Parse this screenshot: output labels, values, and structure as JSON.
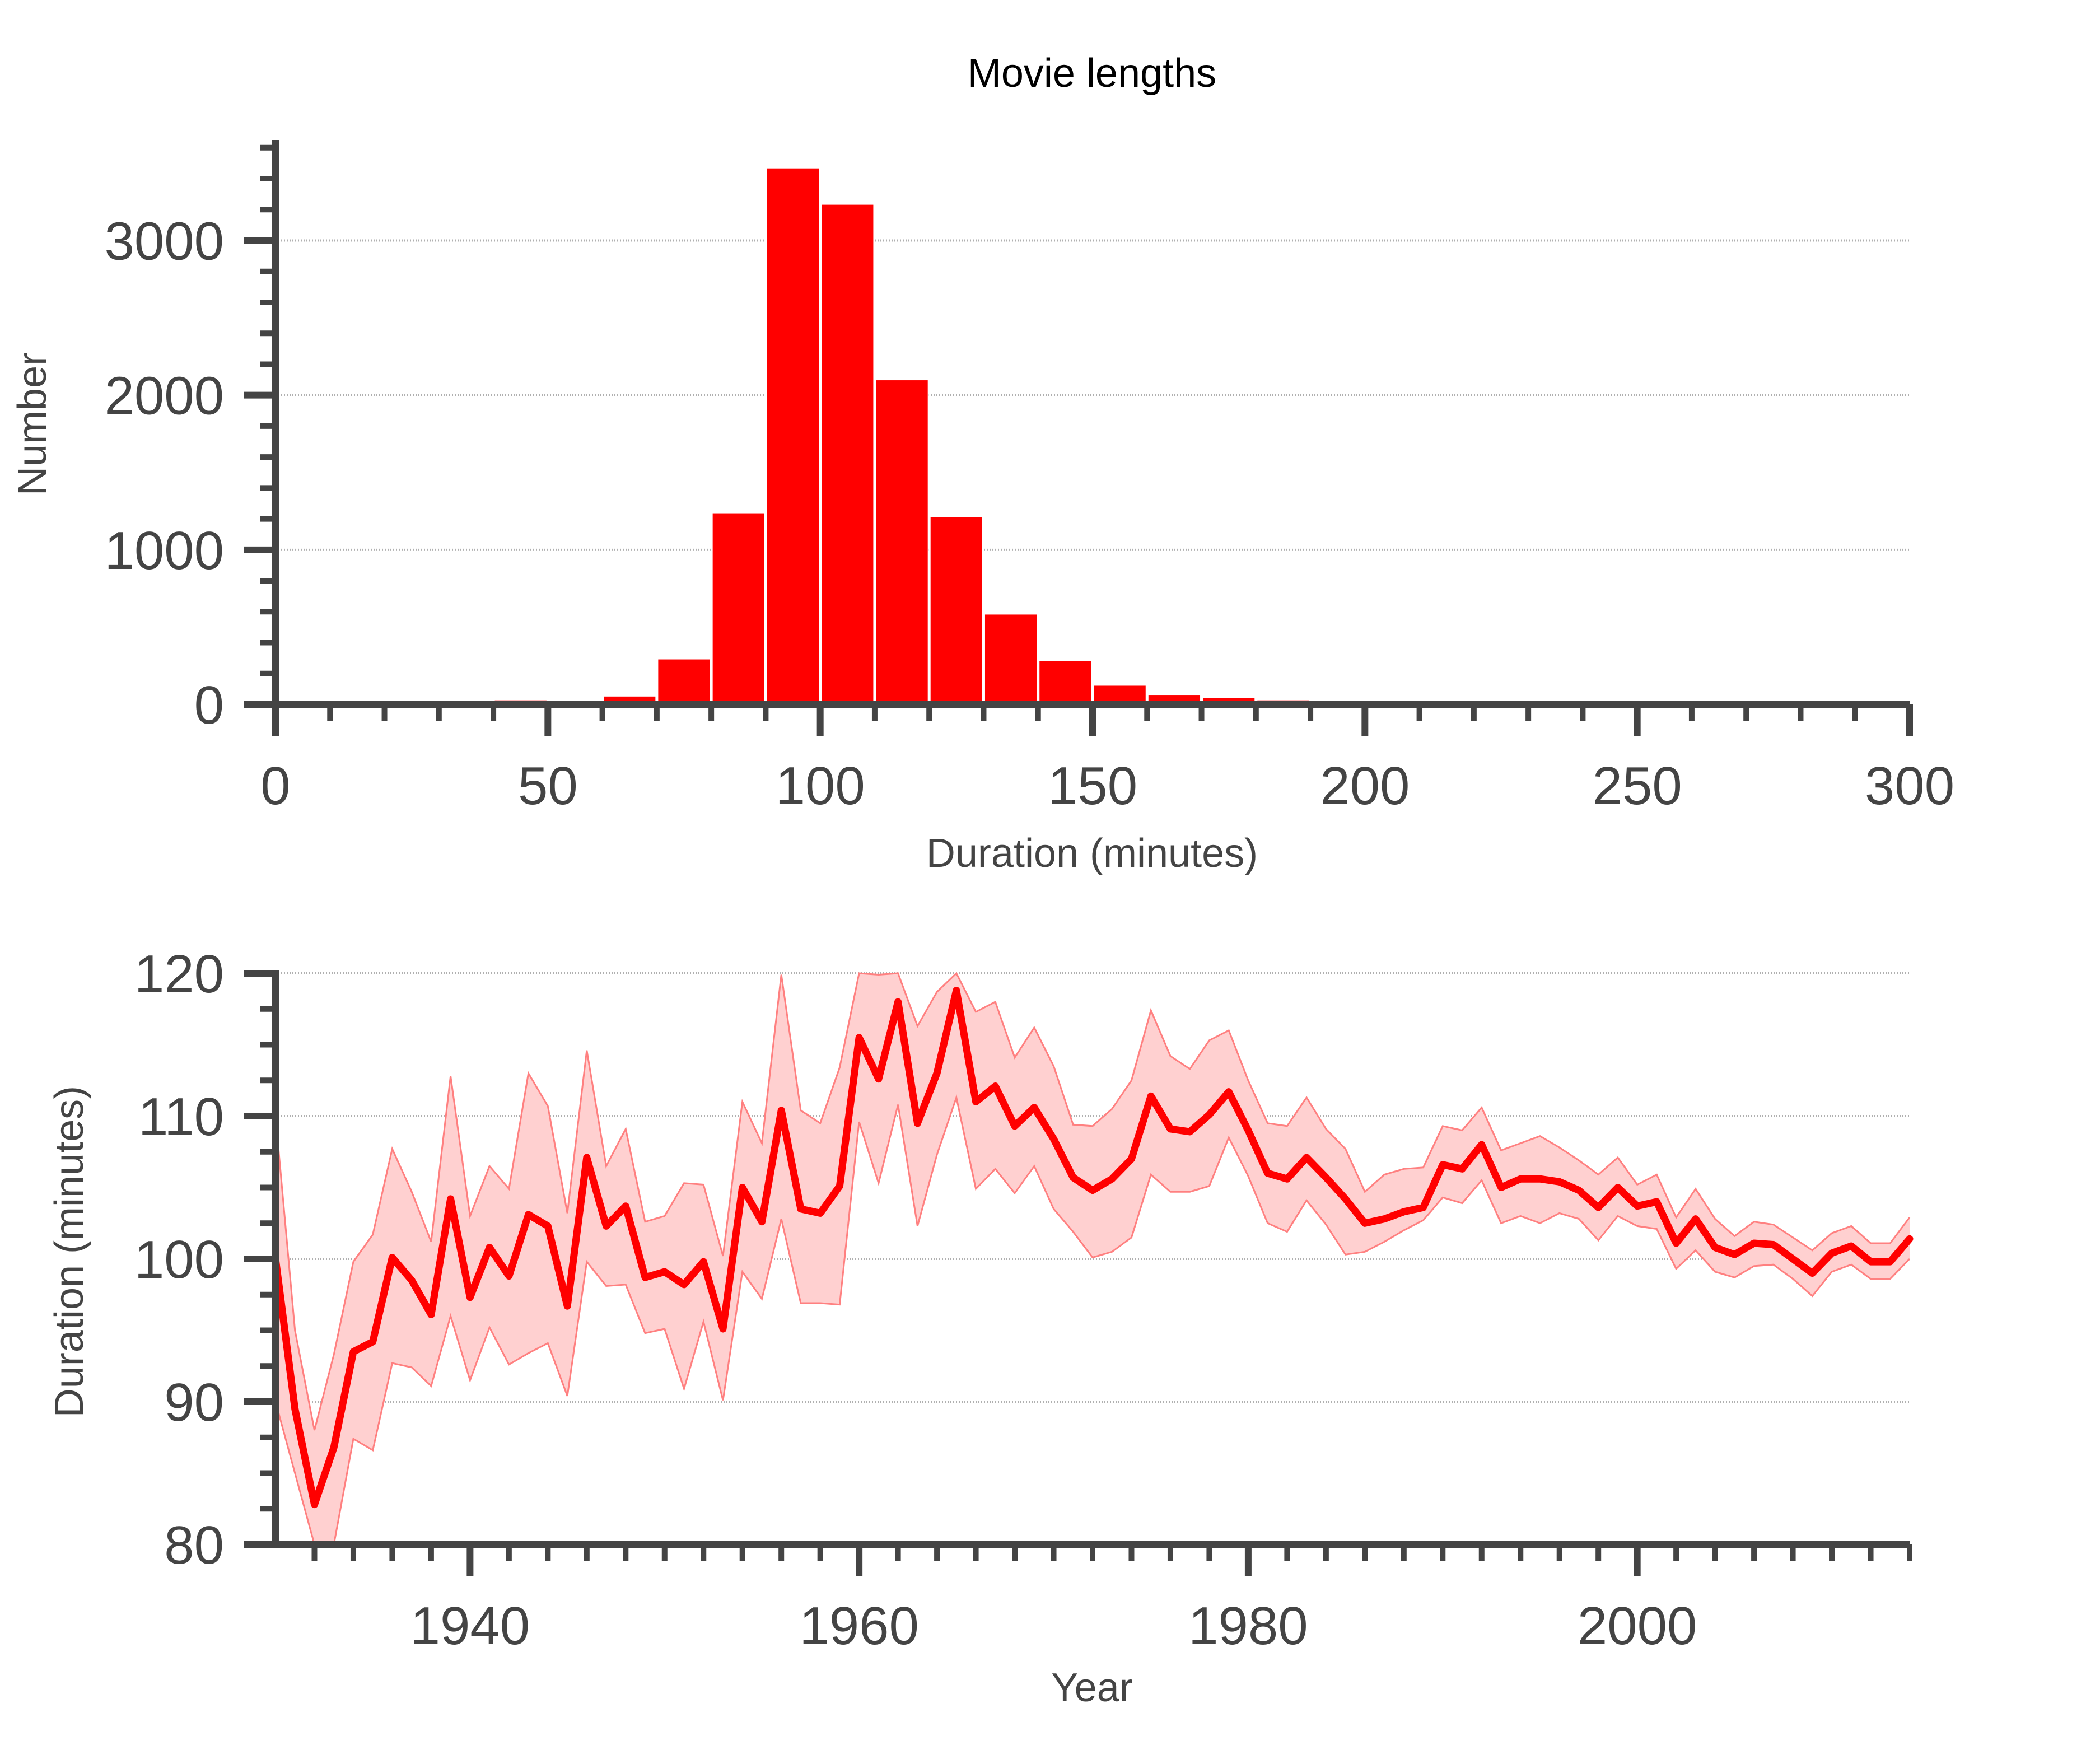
{
  "colors": {
    "bar": "#ff0000",
    "line": "#ff0000",
    "band": "#ffd0d0",
    "band_edge": "#ff8080",
    "axis": "#444444",
    "grid": "#b0b0b0"
  },
  "chart_data": [
    {
      "type": "bar",
      "title": "Movie lengths",
      "xlabel": "Duration (minutes)",
      "ylabel": "Number",
      "xlim": [
        0,
        300
      ],
      "ylim": [
        0,
        3650
      ],
      "xticks": [
        0,
        50,
        100,
        150,
        200,
        250,
        300
      ],
      "yticks": [
        0,
        1000,
        2000,
        3000
      ],
      "grid": "horizontal",
      "bin_width": 10,
      "bin_starts": [
        0,
        10,
        20,
        30,
        40,
        50,
        60,
        70,
        80,
        90,
        100,
        110,
        120,
        130,
        140,
        150,
        160,
        170,
        180,
        190,
        200,
        210,
        220,
        230,
        240,
        250,
        260,
        270,
        280,
        290
      ],
      "values": [
        5,
        10,
        5,
        10,
        30,
        5,
        55,
        295,
        1240,
        3470,
        3235,
        2100,
        1215,
        585,
        285,
        125,
        65,
        45,
        30,
        15,
        5,
        5,
        5,
        5,
        5,
        5,
        5,
        5,
        5,
        5
      ]
    },
    {
      "type": "line",
      "title": "",
      "xlabel": "Year",
      "ylabel": "Duration (minutes)",
      "xlim": [
        1930,
        2014
      ],
      "ylim": [
        80,
        120
      ],
      "xticks": [
        1940,
        1960,
        1980,
        2000
      ],
      "yticks": [
        80,
        90,
        100,
        110,
        120
      ],
      "grid": "horizontal",
      "x": [
        1930,
        1931,
        1932,
        1933,
        1934,
        1935,
        1936,
        1937,
        1938,
        1939,
        1940,
        1941,
        1942,
        1943,
        1944,
        1945,
        1946,
        1947,
        1948,
        1949,
        1950,
        1951,
        1952,
        1953,
        1954,
        1955,
        1956,
        1957,
        1958,
        1959,
        1960,
        1961,
        1962,
        1963,
        1964,
        1965,
        1966,
        1967,
        1968,
        1969,
        1970,
        1971,
        1972,
        1973,
        1974,
        1975,
        1976,
        1977,
        1978,
        1979,
        1980,
        1981,
        1982,
        1983,
        1984,
        1985,
        1986,
        1987,
        1988,
        1989,
        1990,
        1991,
        1992,
        1993,
        1994,
        1995,
        1996,
        1997,
        1998,
        1999,
        2000,
        2001,
        2002,
        2003,
        2004,
        2005,
        2006,
        2007,
        2008,
        2009,
        2010,
        2011,
        2012,
        2013,
        2014
      ],
      "mean": [
        100,
        89.5,
        82.8,
        86.8,
        93.5,
        94.2,
        100.1,
        98.5,
        96.1,
        104.2,
        97.3,
        100.8,
        98.8,
        103.1,
        102.3,
        96.7,
        107.1,
        102.3,
        103.7,
        98.7,
        99.1,
        98.2,
        99.8,
        95.1,
        105,
        102.6,
        110.4,
        103.5,
        103.2,
        105.1,
        115.5,
        112.6,
        118,
        109.5,
        113,
        118.8,
        111,
        112.1,
        109.3,
        110.6,
        108.4,
        105.7,
        104.8,
        105.6,
        107,
        111.4,
        109.1,
        108.9,
        110.1,
        111.7,
        109,
        106,
        105.6,
        107.1,
        105.7,
        104.2,
        102.5,
        102.8,
        103.3,
        103.6,
        106.6,
        106.3,
        108,
        105,
        105.6,
        105.6,
        105.4,
        104.8,
        103.6,
        105,
        103.7,
        104,
        101.1,
        102.8,
        100.8,
        100.3,
        101.1,
        101,
        100,
        99,
        100.4,
        100.9,
        99.8,
        99.8,
        101.4
      ],
      "lower": [
        90,
        85,
        80,
        80,
        87.4,
        86.6,
        92.7,
        92.4,
        91.1,
        96,
        91.5,
        95.2,
        92.6,
        93.4,
        94.1,
        90.4,
        99.8,
        98.1,
        98.2,
        94.8,
        95.1,
        90.9,
        95.6,
        90.1,
        99.1,
        97.2,
        102.8,
        96.9,
        96.9,
        96.8,
        109.6,
        105.3,
        110.8,
        102.3,
        107.3,
        111.3,
        104.9,
        106.3,
        104.6,
        106.5,
        103.5,
        101.9,
        100.1,
        100.5,
        101.5,
        105.9,
        104.7,
        104.7,
        105.1,
        108.5,
        105.8,
        102.5,
        101.9,
        104.1,
        102.4,
        100.3,
        100.5,
        101.2,
        102,
        102.7,
        104.3,
        103.9,
        105.5,
        102.5,
        103,
        102.5,
        103.2,
        102.8,
        101.3,
        103,
        102.3,
        102.1,
        99.3,
        100.6,
        99.1,
        98.7,
        99.5,
        99.6,
        98.6,
        97.4,
        99.1,
        99.6,
        98.6,
        98.6,
        100
      ],
      "upper": [
        110,
        95,
        88,
        93.3,
        99.8,
        101.7,
        107.7,
        104.7,
        101.2,
        112.8,
        103,
        106.5,
        104.9,
        113,
        110.7,
        103.2,
        114.6,
        106.5,
        109.1,
        102.6,
        103,
        105.3,
        105.2,
        100.2,
        111,
        108.1,
        119.9,
        110.4,
        109.5,
        113.4,
        121.6,
        119.9,
        125.3,
        116.3,
        118.7,
        126.3,
        117.3,
        118,
        114.1,
        116.2,
        113.5,
        109.4,
        109.3,
        110.5,
        112.5,
        117.4,
        114.2,
        113.3,
        115.3,
        116,
        112.5,
        109.5,
        109.3,
        111.3,
        109.1,
        107.7,
        104.7,
        105.9,
        106.3,
        106.4,
        109.3,
        109,
        110.6,
        107.6,
        108.1,
        108.6,
        107.8,
        106.9,
        105.9,
        107.1,
        105.2,
        105.9,
        102.9,
        104.9,
        102.8,
        101.6,
        102.6,
        102.4,
        101.5,
        100.6,
        101.8,
        102.3,
        101.1,
        101.1,
        102.9
      ]
    }
  ]
}
